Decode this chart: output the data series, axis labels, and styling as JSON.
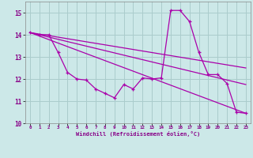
{
  "xlabel": "Windchill (Refroidissement éolien,°C)",
  "background_color": "#cce8e8",
  "grid_color": "#aacccc",
  "line_color": "#aa00aa",
  "xlim": [
    -0.5,
    23.5
  ],
  "ylim": [
    10.0,
    15.5
  ],
  "yticks": [
    10,
    11,
    12,
    13,
    14,
    15
  ],
  "xticks": [
    0,
    1,
    2,
    3,
    4,
    5,
    6,
    7,
    8,
    9,
    10,
    11,
    12,
    13,
    14,
    15,
    16,
    17,
    18,
    19,
    20,
    21,
    22,
    23
  ],
  "line1_x": [
    0,
    1,
    2,
    3,
    4,
    5,
    6,
    7,
    8,
    9,
    10,
    11,
    12,
    13,
    14,
    15,
    16,
    17,
    18,
    19,
    20,
    21,
    22,
    23
  ],
  "line1_y": [
    14.1,
    14.0,
    14.0,
    13.2,
    12.3,
    12.0,
    11.95,
    11.55,
    11.35,
    11.15,
    11.75,
    11.55,
    12.05,
    12.0,
    12.05,
    15.1,
    15.1,
    14.6,
    13.2,
    12.2,
    12.2,
    11.8,
    10.5,
    10.45
  ],
  "line2_x": [
    0,
    23
  ],
  "line2_y": [
    14.1,
    10.45
  ],
  "line3_x": [
    0,
    23
  ],
  "line3_y": [
    14.1,
    12.5
  ],
  "line4_x": [
    0,
    23
  ],
  "line4_y": [
    14.1,
    11.75
  ]
}
